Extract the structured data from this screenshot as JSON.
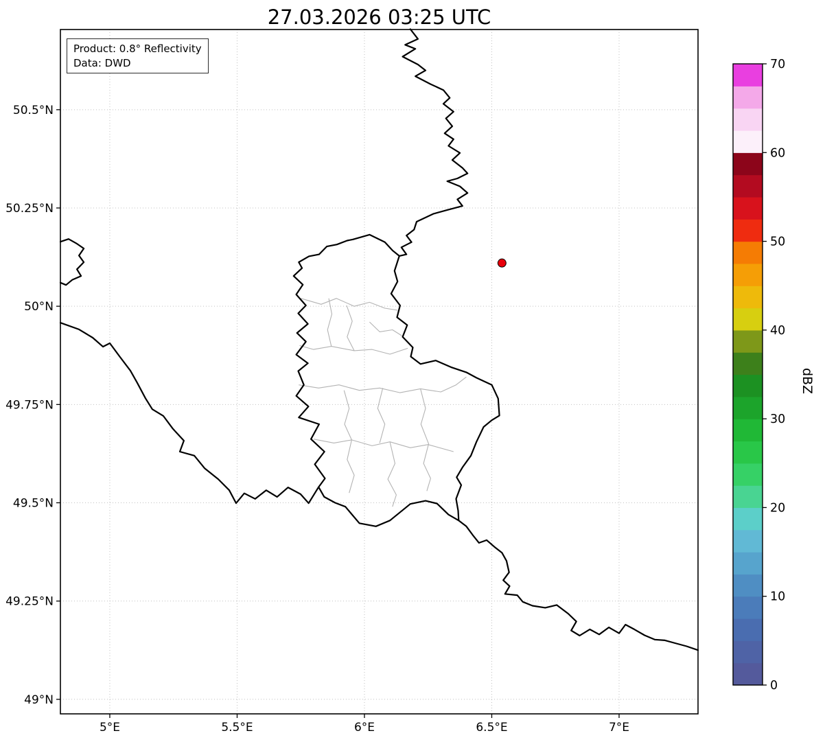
{
  "title": "27.03.2026 03:25 UTC",
  "legend": {
    "product": "Product: 0.8° Reflectivity",
    "source": "Data: DWD"
  },
  "colorbar": {
    "label": "dBZ",
    "range": [
      0,
      70
    ],
    "ticks": [
      0,
      10,
      20,
      30,
      40,
      50,
      60,
      70
    ],
    "colors_bottom_to_top": [
      "#545a9c",
      "#4f63a6",
      "#4a6db0",
      "#4b7cba",
      "#4f8ec3",
      "#57a4cd",
      "#61b9d5",
      "#5ccfc9",
      "#49d492",
      "#36d166",
      "#29c748",
      "#20b836",
      "#1ca42b",
      "#1c9122",
      "#3d801b",
      "#7e9819",
      "#d7cf10",
      "#eeba0b",
      "#f59e06",
      "#f57c04",
      "#ef2c10",
      "#d8121c",
      "#b30b20",
      "#8c051a",
      "#fcf0fa",
      "#f9d5f3",
      "#f4a9e9",
      "#e93fe0"
    ]
  },
  "axes": {
    "xlim": [
      4.806,
      7.31
    ],
    "ylim": [
      48.963,
      50.704
    ],
    "xticks": [
      {
        "value": 5.0,
        "label": "5°E"
      },
      {
        "value": 5.5,
        "label": "5.5°E"
      },
      {
        "value": 6.0,
        "label": "6°E"
      },
      {
        "value": 6.5,
        "label": "6.5°E"
      },
      {
        "value": 7.0,
        "label": "7°E"
      }
    ],
    "yticks": [
      {
        "value": 49.0,
        "label": "49°N"
      },
      {
        "value": 49.25,
        "label": "49.25°N"
      },
      {
        "value": 49.5,
        "label": "49.5°N"
      },
      {
        "value": 49.75,
        "label": "49.75°N"
      },
      {
        "value": 50.0,
        "label": "50°N"
      },
      {
        "value": 50.25,
        "label": "50.25°N"
      },
      {
        "value": 50.5,
        "label": "50.5°N"
      }
    ],
    "grid": "dotted"
  },
  "marker": {
    "name": "radar-site",
    "lon": 6.54,
    "lat": 50.11,
    "fill": "#e8000b",
    "edge": "#000000"
  },
  "map": {
    "country_color": "#000000",
    "district_color": "#b3b3b3",
    "country_borders": [
      {
        "name": "belgium-germany-border",
        "points": [
          [
            6.18,
            50.705
          ],
          [
            6.21,
            50.68
          ],
          [
            6.16,
            50.665
          ],
          [
            6.2,
            50.655
          ],
          [
            6.15,
            50.635
          ],
          [
            6.21,
            50.615
          ],
          [
            6.24,
            50.6
          ],
          [
            6.2,
            50.585
          ],
          [
            6.26,
            50.565
          ],
          [
            6.31,
            50.55
          ],
          [
            6.335,
            50.53
          ],
          [
            6.31,
            50.515
          ],
          [
            6.35,
            50.495
          ],
          [
            6.32,
            50.478
          ],
          [
            6.345,
            50.458
          ],
          [
            6.315,
            50.44
          ],
          [
            6.35,
            50.425
          ],
          [
            6.33,
            50.408
          ],
          [
            6.375,
            50.39
          ],
          [
            6.345,
            50.372
          ],
          [
            6.385,
            50.352
          ],
          [
            6.405,
            50.338
          ],
          [
            6.365,
            50.325
          ],
          [
            6.325,
            50.318
          ],
          [
            6.375,
            50.305
          ],
          [
            6.405,
            50.288
          ],
          [
            6.365,
            50.272
          ],
          [
            6.385,
            50.255
          ],
          [
            6.325,
            50.245
          ],
          [
            6.27,
            50.235
          ],
          [
            6.205,
            50.215
          ],
          [
            6.195,
            50.195
          ],
          [
            6.165,
            50.18
          ],
          [
            6.185,
            50.163
          ],
          [
            6.145,
            50.15
          ],
          [
            6.165,
            50.132
          ],
          [
            6.137,
            50.128
          ]
        ]
      },
      {
        "name": "luxembourg-outline",
        "points": [
          [
            5.955,
            50.17
          ],
          [
            6.02,
            50.182
          ],
          [
            6.08,
            50.163
          ],
          [
            6.11,
            50.142
          ],
          [
            6.137,
            50.128
          ],
          [
            6.118,
            50.09
          ],
          [
            6.13,
            50.063
          ],
          [
            6.105,
            50.032
          ],
          [
            6.14,
            50.002
          ],
          [
            6.128,
            49.972
          ],
          [
            6.168,
            49.952
          ],
          [
            6.15,
            49.922
          ],
          [
            6.19,
            49.895
          ],
          [
            6.182,
            49.872
          ],
          [
            6.22,
            49.853
          ],
          [
            6.28,
            49.862
          ],
          [
            6.34,
            49.845
          ],
          [
            6.4,
            49.832
          ],
          [
            6.44,
            49.818
          ],
          [
            6.5,
            49.8
          ],
          [
            6.525,
            49.765
          ],
          [
            6.53,
            49.722
          ],
          [
            6.5,
            49.71
          ],
          [
            6.468,
            49.693
          ],
          [
            6.44,
            49.655
          ],
          [
            6.418,
            49.62
          ],
          [
            6.385,
            49.59
          ],
          [
            6.362,
            49.565
          ],
          [
            6.38,
            49.545
          ],
          [
            6.36,
            49.51
          ],
          [
            6.368,
            49.48
          ],
          [
            6.37,
            49.455
          ],
          [
            6.33,
            49.47
          ],
          [
            6.285,
            49.498
          ],
          [
            6.24,
            49.505
          ],
          [
            6.18,
            49.497
          ],
          [
            6.1,
            49.455
          ],
          [
            6.045,
            49.44
          ],
          [
            5.98,
            49.448
          ],
          [
            5.925,
            49.49
          ],
          [
            5.885,
            49.5
          ],
          [
            5.842,
            49.515
          ],
          [
            5.82,
            49.54
          ],
          [
            5.845,
            49.562
          ],
          [
            5.805,
            49.598
          ],
          [
            5.843,
            49.63
          ],
          [
            5.79,
            49.662
          ],
          [
            5.822,
            49.7
          ],
          [
            5.742,
            49.717
          ],
          [
            5.78,
            49.745
          ],
          [
            5.732,
            49.772
          ],
          [
            5.762,
            49.8
          ],
          [
            5.74,
            49.835
          ],
          [
            5.778,
            49.855
          ],
          [
            5.732,
            49.877
          ],
          [
            5.77,
            49.91
          ],
          [
            5.735,
            49.932
          ],
          [
            5.778,
            49.955
          ],
          [
            5.74,
            49.982
          ],
          [
            5.77,
            50.002
          ],
          [
            5.732,
            50.03
          ],
          [
            5.758,
            50.055
          ],
          [
            5.722,
            50.077
          ],
          [
            5.755,
            50.097
          ],
          [
            5.742,
            50.112
          ],
          [
            5.782,
            50.127
          ],
          [
            5.822,
            50.132
          ],
          [
            5.852,
            50.152
          ],
          [
            5.892,
            50.157
          ],
          [
            5.932,
            50.167
          ],
          [
            5.955,
            50.17
          ]
        ]
      },
      {
        "name": "france-belgium-border",
        "points": [
          [
            4.806,
            49.958
          ],
          [
            4.879,
            49.941
          ],
          [
            4.933,
            49.92
          ],
          [
            4.973,
            49.897
          ],
          [
            5.0,
            49.906
          ],
          [
            5.04,
            49.871
          ],
          [
            5.081,
            49.836
          ],
          [
            5.108,
            49.805
          ],
          [
            5.14,
            49.766
          ],
          [
            5.167,
            49.738
          ],
          [
            5.21,
            49.721
          ],
          [
            5.248,
            49.688
          ],
          [
            5.291,
            49.658
          ],
          [
            5.275,
            49.63
          ],
          [
            5.332,
            49.62
          ],
          [
            5.372,
            49.588
          ],
          [
            5.426,
            49.56
          ],
          [
            5.469,
            49.532
          ],
          [
            5.496,
            49.499
          ],
          [
            5.528,
            49.524
          ],
          [
            5.571,
            49.51
          ],
          [
            5.614,
            49.532
          ],
          [
            5.657,
            49.515
          ],
          [
            5.7,
            49.539
          ],
          [
            5.749,
            49.522
          ],
          [
            5.781,
            49.499
          ],
          [
            5.82,
            49.54
          ]
        ]
      },
      {
        "name": "givet-salient-border",
        "points": [
          [
            4.806,
            50.164
          ],
          [
            4.838,
            50.171
          ],
          [
            4.871,
            50.159
          ],
          [
            4.898,
            50.147
          ],
          [
            4.879,
            50.129
          ],
          [
            4.898,
            50.112
          ],
          [
            4.871,
            50.094
          ],
          [
            4.887,
            50.077
          ],
          [
            4.852,
            50.067
          ],
          [
            4.828,
            50.054
          ],
          [
            4.806,
            50.06
          ]
        ]
      },
      {
        "name": "france-germany-border",
        "points": [
          [
            6.37,
            49.455
          ],
          [
            6.4,
            49.44
          ],
          [
            6.425,
            49.418
          ],
          [
            6.45,
            49.398
          ],
          [
            6.48,
            49.405
          ],
          [
            6.51,
            49.388
          ],
          [
            6.54,
            49.373
          ],
          [
            6.558,
            49.352
          ],
          [
            6.568,
            49.323
          ],
          [
            6.545,
            49.303
          ],
          [
            6.57,
            49.288
          ],
          [
            6.552,
            49.268
          ],
          [
            6.6,
            49.265
          ],
          [
            6.622,
            49.248
          ],
          [
            6.66,
            49.238
          ],
          [
            6.71,
            49.233
          ],
          [
            6.755,
            49.24
          ],
          [
            6.8,
            49.218
          ],
          [
            6.832,
            49.198
          ],
          [
            6.812,
            49.175
          ],
          [
            6.845,
            49.162
          ],
          [
            6.885,
            49.178
          ],
          [
            6.922,
            49.165
          ],
          [
            6.96,
            49.183
          ],
          [
            7.0,
            49.168
          ],
          [
            7.025,
            49.19
          ],
          [
            7.06,
            49.178
          ],
          [
            7.1,
            49.163
          ],
          [
            7.14,
            49.152
          ],
          [
            7.18,
            49.15
          ],
          [
            7.225,
            49.142
          ],
          [
            7.265,
            49.135
          ],
          [
            7.31,
            49.125
          ]
        ]
      }
    ],
    "district_borders": [
      {
        "points": [
          [
            5.93,
            50.002
          ],
          [
            5.952,
            49.962
          ],
          [
            5.932,
            49.922
          ],
          [
            5.96,
            49.887
          ]
        ]
      },
      {
        "points": [
          [
            5.75,
            50.02
          ],
          [
            5.83,
            50.005
          ],
          [
            5.89,
            50.02
          ],
          [
            5.96,
            50.0
          ],
          [
            6.02,
            50.01
          ],
          [
            6.08,
            49.995
          ],
          [
            6.13,
            49.99
          ]
        ]
      },
      {
        "points": [
          [
            5.745,
            49.9
          ],
          [
            5.8,
            49.89
          ],
          [
            5.87,
            49.898
          ],
          [
            5.96,
            49.887
          ],
          [
            6.03,
            49.89
          ],
          [
            6.1,
            49.878
          ],
          [
            6.17,
            49.893
          ]
        ]
      },
      {
        "points": [
          [
            5.742,
            49.8
          ],
          [
            5.82,
            49.792
          ],
          [
            5.9,
            49.8
          ],
          [
            5.98,
            49.786
          ],
          [
            6.06,
            49.792
          ],
          [
            6.14,
            49.78
          ],
          [
            6.22,
            49.79
          ],
          [
            6.3,
            49.782
          ],
          [
            6.36,
            49.8
          ],
          [
            6.4,
            49.82
          ]
        ]
      },
      {
        "points": [
          [
            5.92,
            49.786
          ],
          [
            5.94,
            49.74
          ],
          [
            5.922,
            49.7
          ],
          [
            5.95,
            49.66
          ]
        ]
      },
      {
        "points": [
          [
            6.072,
            49.792
          ],
          [
            6.052,
            49.74
          ],
          [
            6.08,
            49.7
          ],
          [
            6.06,
            49.652
          ]
        ]
      },
      {
        "points": [
          [
            5.8,
            49.662
          ],
          [
            5.88,
            49.652
          ],
          [
            5.95,
            49.66
          ],
          [
            6.03,
            49.645
          ],
          [
            6.1,
            49.655
          ],
          [
            6.18,
            49.64
          ],
          [
            6.25,
            49.648
          ],
          [
            6.35,
            49.63
          ]
        ]
      },
      {
        "points": [
          [
            6.22,
            49.79
          ],
          [
            6.24,
            49.74
          ],
          [
            6.222,
            49.7
          ],
          [
            6.252,
            49.65
          ],
          [
            6.232,
            49.6
          ],
          [
            6.26,
            49.562
          ],
          [
            6.245,
            49.53
          ]
        ]
      },
      {
        "points": [
          [
            6.1,
            49.655
          ],
          [
            6.12,
            49.6
          ],
          [
            6.092,
            49.56
          ],
          [
            6.125,
            49.52
          ],
          [
            6.11,
            49.49
          ]
        ]
      },
      {
        "points": [
          [
            5.95,
            49.66
          ],
          [
            5.932,
            49.61
          ],
          [
            5.96,
            49.57
          ],
          [
            5.94,
            49.525
          ]
        ]
      },
      {
        "points": [
          [
            6.02,
            49.96
          ],
          [
            6.06,
            49.935
          ],
          [
            6.11,
            49.94
          ],
          [
            6.147,
            49.925
          ]
        ]
      },
      {
        "points": [
          [
            5.86,
            50.02
          ],
          [
            5.872,
            49.98
          ],
          [
            5.855,
            49.94
          ],
          [
            5.87,
            49.898
          ]
        ]
      }
    ]
  }
}
